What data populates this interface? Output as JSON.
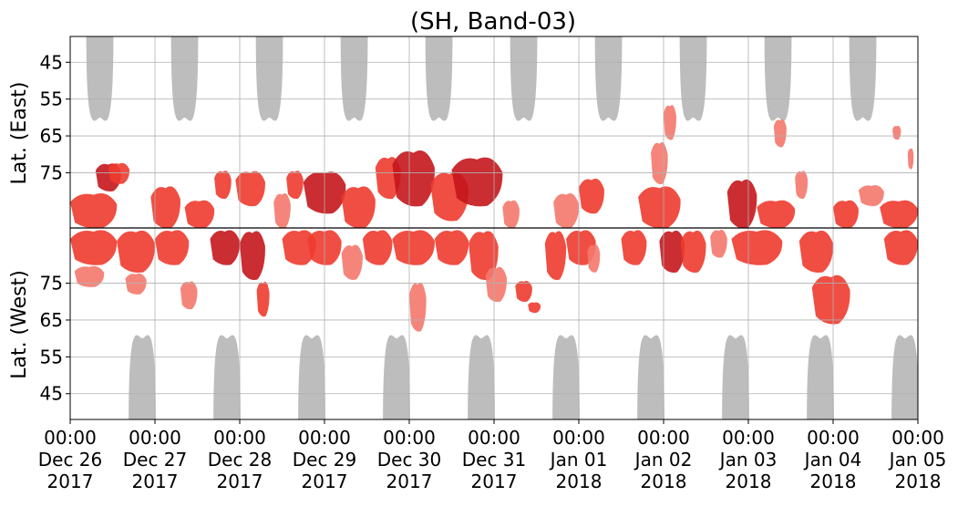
{
  "chart_data": {
    "type": "heatmap",
    "title": "(SH, Band-03)",
    "y_label_upper": "Lat. (East)",
    "y_label_lower": "Lat. (West)",
    "x_ticks": [
      {
        "time": "00:00",
        "date": "Dec 26",
        "year": "2017"
      },
      {
        "time": "00:00",
        "date": "Dec 27",
        "year": "2017"
      },
      {
        "time": "00:00",
        "date": "Dec 28",
        "year": "2017"
      },
      {
        "time": "00:00",
        "date": "Dec 29",
        "year": "2017"
      },
      {
        "time": "00:00",
        "date": "Dec 30",
        "year": "2017"
      },
      {
        "time": "00:00",
        "date": "Dec 31",
        "year": "2017"
      },
      {
        "time": "00:00",
        "date": "Jan 01",
        "year": "2018"
      },
      {
        "time": "00:00",
        "date": "Jan 02",
        "year": "2018"
      },
      {
        "time": "00:00",
        "date": "Jan 03",
        "year": "2018"
      },
      {
        "time": "00:00",
        "date": "Jan 04",
        "year": "2018"
      },
      {
        "time": "00:00",
        "date": "Jan 05",
        "year": "2018"
      }
    ],
    "x_range": [
      "2017-12-26T00:00",
      "2018-01-05T00:00"
    ],
    "y_ticks_east": [
      45,
      55,
      65,
      75
    ],
    "y_ticks_west": [
      75,
      65,
      55,
      45
    ],
    "lat_range": [
      38,
      90
    ],
    "grid": true,
    "colors": {
      "echo_dark": "#c4161c",
      "echo": "#ee3b2f",
      "echo_light": "#f4786c",
      "daylight": "#bdbdbd",
      "grid": "#b0b0b0"
    },
    "daylight_east": [
      {
        "center_day": 0.35,
        "half_width_days": 0.16,
        "min_lat": 60
      },
      {
        "center_day": 1.35,
        "half_width_days": 0.16,
        "min_lat": 60
      },
      {
        "center_day": 2.35,
        "half_width_days": 0.16,
        "min_lat": 60
      },
      {
        "center_day": 3.35,
        "half_width_days": 0.16,
        "min_lat": 60
      },
      {
        "center_day": 4.35,
        "half_width_days": 0.16,
        "min_lat": 60
      },
      {
        "center_day": 5.35,
        "half_width_days": 0.16,
        "min_lat": 60
      },
      {
        "center_day": 6.35,
        "half_width_days": 0.16,
        "min_lat": 60
      },
      {
        "center_day": 7.35,
        "half_width_days": 0.16,
        "min_lat": 60
      },
      {
        "center_day": 8.35,
        "half_width_days": 0.16,
        "min_lat": 60
      },
      {
        "center_day": 9.35,
        "half_width_days": 0.16,
        "min_lat": 60
      }
    ],
    "daylight_west": [
      {
        "center_day": 0.85,
        "half_width_days": 0.16,
        "min_lat": 60
      },
      {
        "center_day": 1.85,
        "half_width_days": 0.16,
        "min_lat": 60
      },
      {
        "center_day": 2.85,
        "half_width_days": 0.16,
        "min_lat": 60
      },
      {
        "center_day": 3.85,
        "half_width_days": 0.16,
        "min_lat": 60
      },
      {
        "center_day": 4.85,
        "half_width_days": 0.16,
        "min_lat": 60
      },
      {
        "center_day": 5.85,
        "half_width_days": 0.16,
        "min_lat": 60
      },
      {
        "center_day": 6.85,
        "half_width_days": 0.16,
        "min_lat": 60
      },
      {
        "center_day": 7.85,
        "half_width_days": 0.16,
        "min_lat": 60
      },
      {
        "center_day": 8.85,
        "half_width_days": 0.16,
        "min_lat": 60
      },
      {
        "center_day": 9.85,
        "half_width_days": 0.16,
        "min_lat": 60
      }
    ],
    "echo_regions": [
      {
        "t0": 0.0,
        "t1": 0.55,
        "side": "east",
        "lat0": 80,
        "lat1": 90,
        "shade": "echo"
      },
      {
        "t0": 0.0,
        "t1": 0.55,
        "side": "west",
        "lat0": 80,
        "lat1": 90,
        "shade": "echo"
      },
      {
        "t0": 0.05,
        "t1": 0.4,
        "side": "west",
        "lat0": 74,
        "lat1": 80,
        "shade": "echo_light"
      },
      {
        "t0": 0.3,
        "t1": 0.6,
        "side": "east",
        "lat0": 72,
        "lat1": 80,
        "shade": "echo_dark"
      },
      {
        "t0": 0.45,
        "t1": 0.7,
        "side": "east",
        "lat0": 72,
        "lat1": 78,
        "shade": "echo"
      },
      {
        "t0": 0.55,
        "t1": 1.0,
        "side": "west",
        "lat0": 78,
        "lat1": 90,
        "shade": "echo"
      },
      {
        "t0": 0.65,
        "t1": 0.9,
        "side": "west",
        "lat0": 72,
        "lat1": 78,
        "shade": "echo_light"
      },
      {
        "t0": 0.95,
        "t1": 1.3,
        "side": "east",
        "lat0": 78,
        "lat1": 90,
        "shade": "echo"
      },
      {
        "t0": 1.0,
        "t1": 1.4,
        "side": "west",
        "lat0": 80,
        "lat1": 90,
        "shade": "echo"
      },
      {
        "t0": 1.3,
        "t1": 1.5,
        "side": "west",
        "lat0": 68,
        "lat1": 76,
        "shade": "echo_light"
      },
      {
        "t0": 1.35,
        "t1": 1.7,
        "side": "east",
        "lat0": 82,
        "lat1": 90,
        "shade": "echo"
      },
      {
        "t0": 1.65,
        "t1": 2.0,
        "side": "west",
        "lat0": 80,
        "lat1": 90,
        "shade": "echo_dark"
      },
      {
        "t0": 1.7,
        "t1": 1.9,
        "side": "east",
        "lat0": 74,
        "lat1": 82,
        "shade": "echo"
      },
      {
        "t0": 1.95,
        "t1": 2.3,
        "side": "east",
        "lat0": 74,
        "lat1": 84,
        "shade": "echo"
      },
      {
        "t0": 2.0,
        "t1": 2.3,
        "side": "west",
        "lat0": 76,
        "lat1": 90,
        "shade": "echo_dark"
      },
      {
        "t0": 2.2,
        "t1": 2.35,
        "side": "west",
        "lat0": 66,
        "lat1": 76,
        "shade": "echo"
      },
      {
        "t0": 2.4,
        "t1": 2.6,
        "side": "east",
        "lat0": 80,
        "lat1": 90,
        "shade": "echo_light"
      },
      {
        "t0": 2.5,
        "t1": 2.9,
        "side": "west",
        "lat0": 80,
        "lat1": 90,
        "shade": "echo"
      },
      {
        "t0": 2.55,
        "t1": 2.75,
        "side": "east",
        "lat0": 74,
        "lat1": 82,
        "shade": "echo"
      },
      {
        "t0": 2.75,
        "t1": 3.25,
        "side": "east",
        "lat0": 74,
        "lat1": 86,
        "shade": "echo_dark"
      },
      {
        "t0": 2.8,
        "t1": 3.2,
        "side": "west",
        "lat0": 80,
        "lat1": 90,
        "shade": "echo"
      },
      {
        "t0": 3.2,
        "t1": 3.6,
        "side": "east",
        "lat0": 78,
        "lat1": 90,
        "shade": "echo"
      },
      {
        "t0": 3.2,
        "t1": 3.45,
        "side": "west",
        "lat0": 76,
        "lat1": 86,
        "shade": "echo_light"
      },
      {
        "t0": 3.45,
        "t1": 3.8,
        "side": "west",
        "lat0": 80,
        "lat1": 90,
        "shade": "echo"
      },
      {
        "t0": 3.6,
        "t1": 3.9,
        "side": "east",
        "lat0": 70,
        "lat1": 82,
        "shade": "echo"
      },
      {
        "t0": 3.8,
        "t1": 4.3,
        "side": "east",
        "lat0": 68,
        "lat1": 84,
        "shade": "echo_dark"
      },
      {
        "t0": 3.8,
        "t1": 4.3,
        "side": "west",
        "lat0": 80,
        "lat1": 90,
        "shade": "echo"
      },
      {
        "t0": 4.0,
        "t1": 4.2,
        "side": "west",
        "lat0": 62,
        "lat1": 76,
        "shade": "echo_light"
      },
      {
        "t0": 4.25,
        "t1": 4.7,
        "side": "east",
        "lat0": 74,
        "lat1": 88,
        "shade": "echo"
      },
      {
        "t0": 4.3,
        "t1": 4.7,
        "side": "west",
        "lat0": 80,
        "lat1": 90,
        "shade": "echo"
      },
      {
        "t0": 4.5,
        "t1": 5.1,
        "side": "east",
        "lat0": 70,
        "lat1": 84,
        "shade": "echo_dark"
      },
      {
        "t0": 4.7,
        "t1": 5.05,
        "side": "west",
        "lat0": 76,
        "lat1": 90,
        "shade": "echo"
      },
      {
        "t0": 4.9,
        "t1": 5.15,
        "side": "west",
        "lat0": 70,
        "lat1": 80,
        "shade": "echo_light"
      },
      {
        "t0": 5.1,
        "t1": 5.3,
        "side": "east",
        "lat0": 82,
        "lat1": 90,
        "shade": "echo_light"
      },
      {
        "t0": 5.25,
        "t1": 5.45,
        "side": "west",
        "lat0": 70,
        "lat1": 76,
        "shade": "echo"
      },
      {
        "t0": 5.4,
        "t1": 5.55,
        "side": "west",
        "lat0": 67,
        "lat1": 70,
        "shade": "echo"
      },
      {
        "t0": 5.6,
        "t1": 5.85,
        "side": "west",
        "lat0": 76,
        "lat1": 90,
        "shade": "echo"
      },
      {
        "t0": 5.7,
        "t1": 6.0,
        "side": "east",
        "lat0": 80,
        "lat1": 90,
        "shade": "echo_light"
      },
      {
        "t0": 5.85,
        "t1": 6.2,
        "side": "west",
        "lat0": 80,
        "lat1": 90,
        "shade": "echo"
      },
      {
        "t0": 6.0,
        "t1": 6.3,
        "side": "east",
        "lat0": 76,
        "lat1": 86,
        "shade": "echo"
      },
      {
        "t0": 6.1,
        "t1": 6.25,
        "side": "west",
        "lat0": 78,
        "lat1": 86,
        "shade": "echo_light"
      },
      {
        "t0": 6.5,
        "t1": 6.8,
        "side": "west",
        "lat0": 80,
        "lat1": 90,
        "shade": "echo"
      },
      {
        "t0": 6.7,
        "t1": 7.2,
        "side": "east",
        "lat0": 78,
        "lat1": 90,
        "shade": "echo"
      },
      {
        "t0": 6.95,
        "t1": 7.25,
        "side": "west",
        "lat0": 78,
        "lat1": 90,
        "shade": "echo_dark"
      },
      {
        "t0": 7.0,
        "t1": 7.15,
        "side": "east",
        "lat0": 56,
        "lat1": 66,
        "shade": "echo_light"
      },
      {
        "t0": 6.85,
        "t1": 7.05,
        "side": "east",
        "lat0": 66,
        "lat1": 78,
        "shade": "echo_light"
      },
      {
        "t0": 7.2,
        "t1": 7.5,
        "side": "west",
        "lat0": 78,
        "lat1": 90,
        "shade": "echo"
      },
      {
        "t0": 7.55,
        "t1": 7.75,
        "side": "west",
        "lat0": 82,
        "lat1": 90,
        "shade": "echo_light"
      },
      {
        "t0": 7.75,
        "t1": 8.1,
        "side": "east",
        "lat0": 76,
        "lat1": 90,
        "shade": "echo_dark"
      },
      {
        "t0": 7.8,
        "t1": 8.4,
        "side": "west",
        "lat0": 80,
        "lat1": 90,
        "shade": "echo"
      },
      {
        "t0": 8.1,
        "t1": 8.55,
        "side": "east",
        "lat0": 82,
        "lat1": 90,
        "shade": "echo"
      },
      {
        "t0": 8.3,
        "t1": 8.45,
        "side": "east",
        "lat0": 60,
        "lat1": 68,
        "shade": "echo_light"
      },
      {
        "t0": 8.55,
        "t1": 8.7,
        "side": "east",
        "lat0": 74,
        "lat1": 82,
        "shade": "echo_light"
      },
      {
        "t0": 8.6,
        "t1": 9.0,
        "side": "west",
        "lat0": 78,
        "lat1": 90,
        "shade": "echo"
      },
      {
        "t0": 8.75,
        "t1": 9.2,
        "side": "west",
        "lat0": 64,
        "lat1": 78,
        "shade": "echo"
      },
      {
        "t0": 9.0,
        "t1": 9.3,
        "side": "east",
        "lat0": 82,
        "lat1": 90,
        "shade": "echo"
      },
      {
        "t0": 9.3,
        "t1": 9.6,
        "side": "east",
        "lat0": 78,
        "lat1": 84,
        "shade": "echo_light"
      },
      {
        "t0": 9.55,
        "t1": 10.0,
        "side": "east",
        "lat0": 82,
        "lat1": 90,
        "shade": "echo"
      },
      {
        "t0": 9.6,
        "t1": 10.0,
        "side": "west",
        "lat0": 80,
        "lat1": 90,
        "shade": "echo"
      },
      {
        "t0": 9.7,
        "t1": 9.8,
        "side": "east",
        "lat0": 62,
        "lat1": 66,
        "shade": "echo_light"
      },
      {
        "t0": 9.88,
        "t1": 9.95,
        "side": "east",
        "lat0": 68,
        "lat1": 74,
        "shade": "echo_light"
      }
    ]
  }
}
